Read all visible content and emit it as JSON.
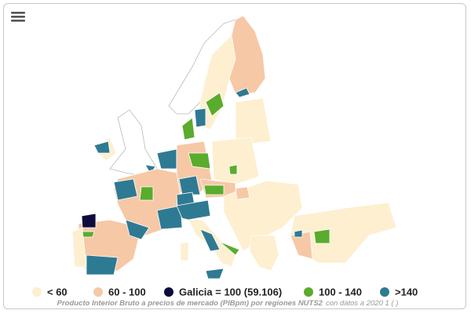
{
  "legend": {
    "items": [
      {
        "label": "< 60",
        "color": "#fdefd0"
      },
      {
        "label": "60 - 100",
        "color": "#f6c8a6"
      },
      {
        "label": "Galicia = 100 (59.106)",
        "color": "#0e0c3c"
      },
      {
        "label": "100 - 140",
        "color": "#5aac2c"
      },
      {
        "label": ">140",
        "color": "#2f7a93"
      }
    ]
  },
  "caption": {
    "title": "Producto Interior Bruto a precios de mercado (PIBpm) por regiones NUTS2",
    "source": "con datos a 2020 1 ( )"
  }
}
